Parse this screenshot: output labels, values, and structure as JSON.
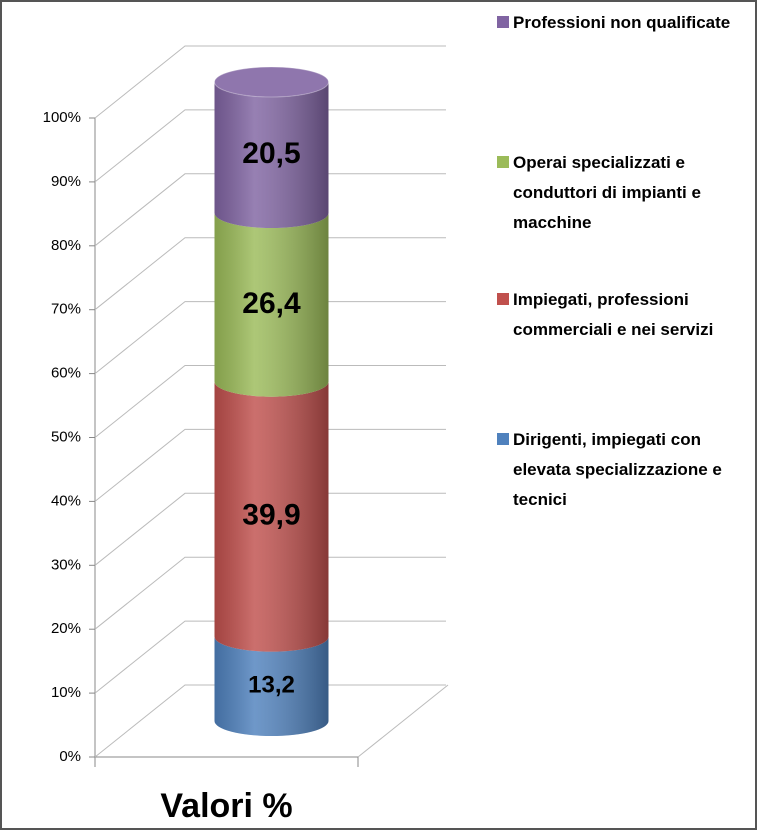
{
  "chart_data": {
    "type": "bar3d_cylinder",
    "stacked": true,
    "legend": "right",
    "grid": true,
    "categories": [
      "Valori %"
    ],
    "series": [
      {
        "name": "Dirigenti, impiegati con elevata specializzazione e tecnici",
        "color": "#4f81bd",
        "values": [
          13.2
        ],
        "value_labels": [
          "13,2"
        ]
      },
      {
        "name": "Impiegati, professioni commerciali e nei servizi",
        "color": "#c0504d",
        "values": [
          39.9
        ],
        "value_labels": [
          "39,9"
        ]
      },
      {
        "name": "Operai specializzati e conduttori di impianti e macchine",
        "color": "#9bbb59",
        "values": [
          26.4
        ],
        "value_labels": [
          "26,4"
        ]
      },
      {
        "name": "Professioni non qualificate",
        "color": "#8064a2",
        "values": [
          20.5
        ],
        "value_labels": [
          "20,5"
        ]
      }
    ],
    "ylim": [
      0,
      100
    ],
    "yticks": [
      {
        "value": 0,
        "label": "0%"
      },
      {
        "value": 10,
        "label": "10%"
      },
      {
        "value": 20,
        "label": "20%"
      },
      {
        "value": 30,
        "label": "30%"
      },
      {
        "value": 40,
        "label": "40%"
      },
      {
        "value": 50,
        "label": "50%"
      },
      {
        "value": 60,
        "label": "60%"
      },
      {
        "value": 70,
        "label": "70%"
      },
      {
        "value": 80,
        "label": "80%"
      },
      {
        "value": 90,
        "label": "90%"
      },
      {
        "value": 100,
        "label": "100%"
      }
    ]
  }
}
